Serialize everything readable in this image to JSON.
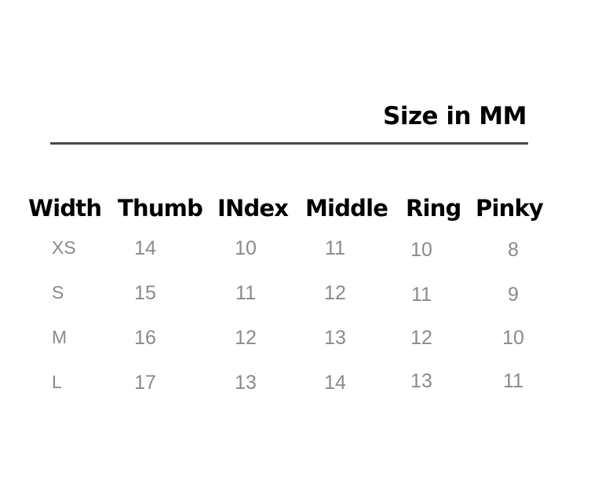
{
  "title": "Size in MM",
  "columns": [
    "Width",
    "Thumb",
    "INdex",
    "Middle",
    "Ring",
    "Pinky"
  ],
  "rows": [
    {
      "size": "XS",
      "values": [
        "14",
        "10",
        "11",
        "10",
        "8"
      ]
    },
    {
      "size": "S",
      "values": [
        "15",
        "11",
        "12",
        "11",
        "9"
      ]
    },
    {
      "size": "M",
      "values": [
        "16",
        "12",
        "13",
        "12",
        "10"
      ]
    },
    {
      "size": "L",
      "values": [
        "17",
        "13",
        "14",
        "13",
        "11"
      ]
    }
  ]
}
